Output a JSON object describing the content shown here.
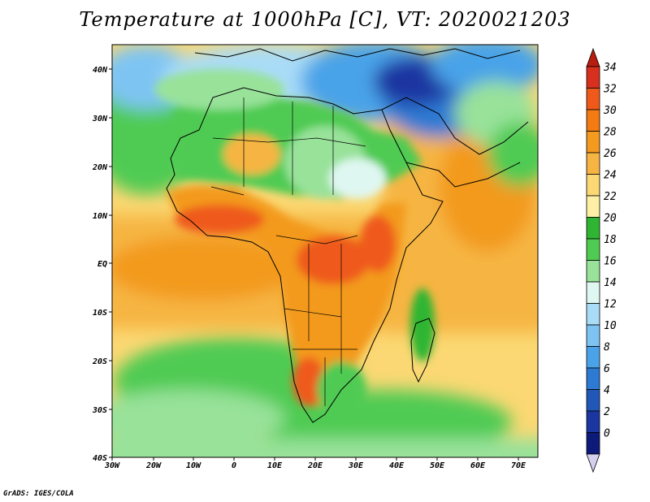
{
  "title": "Temperature at 1000hPa [C], VT: 2020021203",
  "credit": "GrADS: IGES/COLA",
  "map": {
    "region": "Africa",
    "x_ticks": [
      "30W",
      "20W",
      "10W",
      "0",
      "10E",
      "20E",
      "30E",
      "40E",
      "50E",
      "60E",
      "70E"
    ],
    "y_ticks": [
      "40N",
      "30N",
      "20N",
      "10N",
      "EQ",
      "10S",
      "20S",
      "30S",
      "40S"
    ]
  },
  "colorbar": {
    "labels": [
      "34",
      "32",
      "30",
      "28",
      "26",
      "24",
      "22",
      "20",
      "18",
      "16",
      "14",
      "12",
      "10",
      "8",
      "6",
      "4",
      "2",
      "0"
    ],
    "colors": [
      "#d7301f",
      "#ef5a1a",
      "#f47a12",
      "#f39a1f",
      "#f6b542",
      "#fbd873",
      "#fdf0a5",
      "#2fb532",
      "#4fcb52",
      "#98e29a",
      "#dff7f1",
      "#a9dcf7",
      "#7ec4f3",
      "#4aa3e8",
      "#2d7ad3",
      "#2158b8",
      "#1b36a1",
      "#0d1a7a"
    ],
    "top_color": "#b81d10",
    "bottom_color": "#d6d0ef"
  }
}
